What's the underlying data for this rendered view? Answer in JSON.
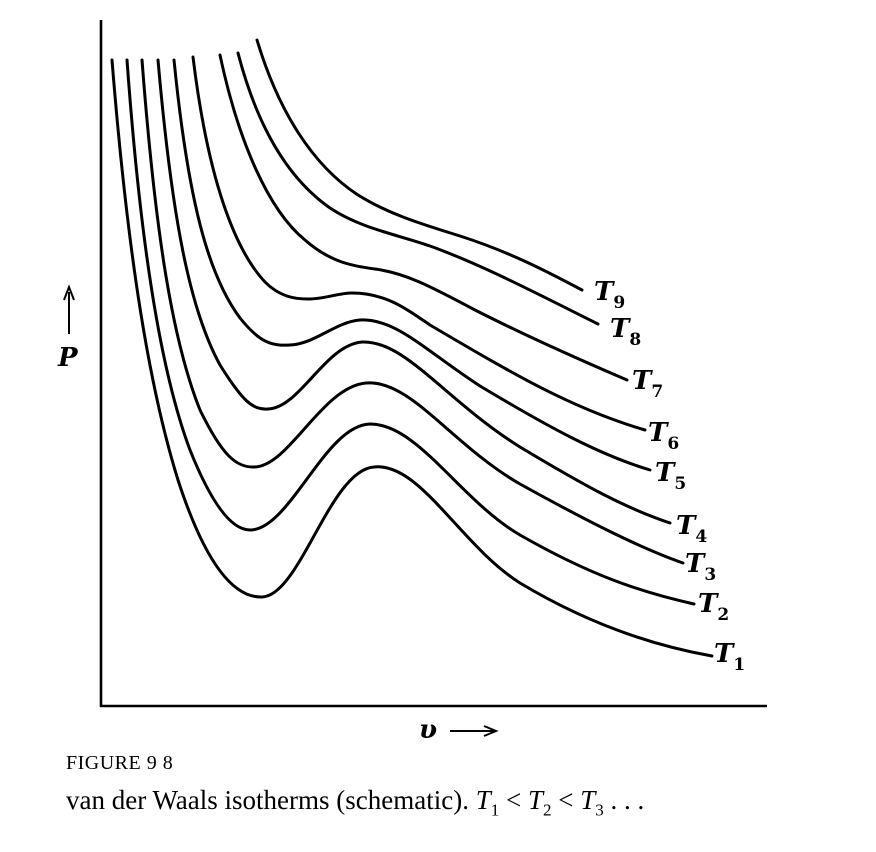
{
  "chart_data": {
    "type": "line",
    "xlabel": "υ",
    "ylabel": "P",
    "series": [
      {
        "name": "T1"
      },
      {
        "name": "T2"
      },
      {
        "name": "T3"
      },
      {
        "name": "T4"
      },
      {
        "name": "T5"
      },
      {
        "name": "T6"
      },
      {
        "name": "T7"
      },
      {
        "name": "T8"
      },
      {
        "name": "T9"
      }
    ],
    "grid": false
  },
  "labels": {
    "t1_base": "T",
    "t1_sub": "1",
    "t2_base": "T",
    "t2_sub": "2",
    "t3_base": "T",
    "t3_sub": "3",
    "t4_base": "T",
    "t4_sub": "4",
    "t5_base": "T",
    "t5_sub": "5",
    "t6_base": "T",
    "t6_sub": "6",
    "t7_base": "T",
    "t7_sub": "7",
    "t8_base": "T",
    "t8_sub": "8",
    "t9_base": "T",
    "t9_sub": "9",
    "y_axis": "P",
    "x_axis": "υ"
  },
  "caption": {
    "figure_number": "FIGURE 9 8",
    "text": "van der Waals isotherms (schematic).",
    "rel_t1": "T",
    "rel_t1_sub": "1",
    "lt1": " < ",
    "rel_t2": "T",
    "rel_t2_sub": "2",
    "lt2": " < ",
    "rel_t3": "T",
    "rel_t3_sub": "3",
    "ellipsis": " . . ."
  }
}
